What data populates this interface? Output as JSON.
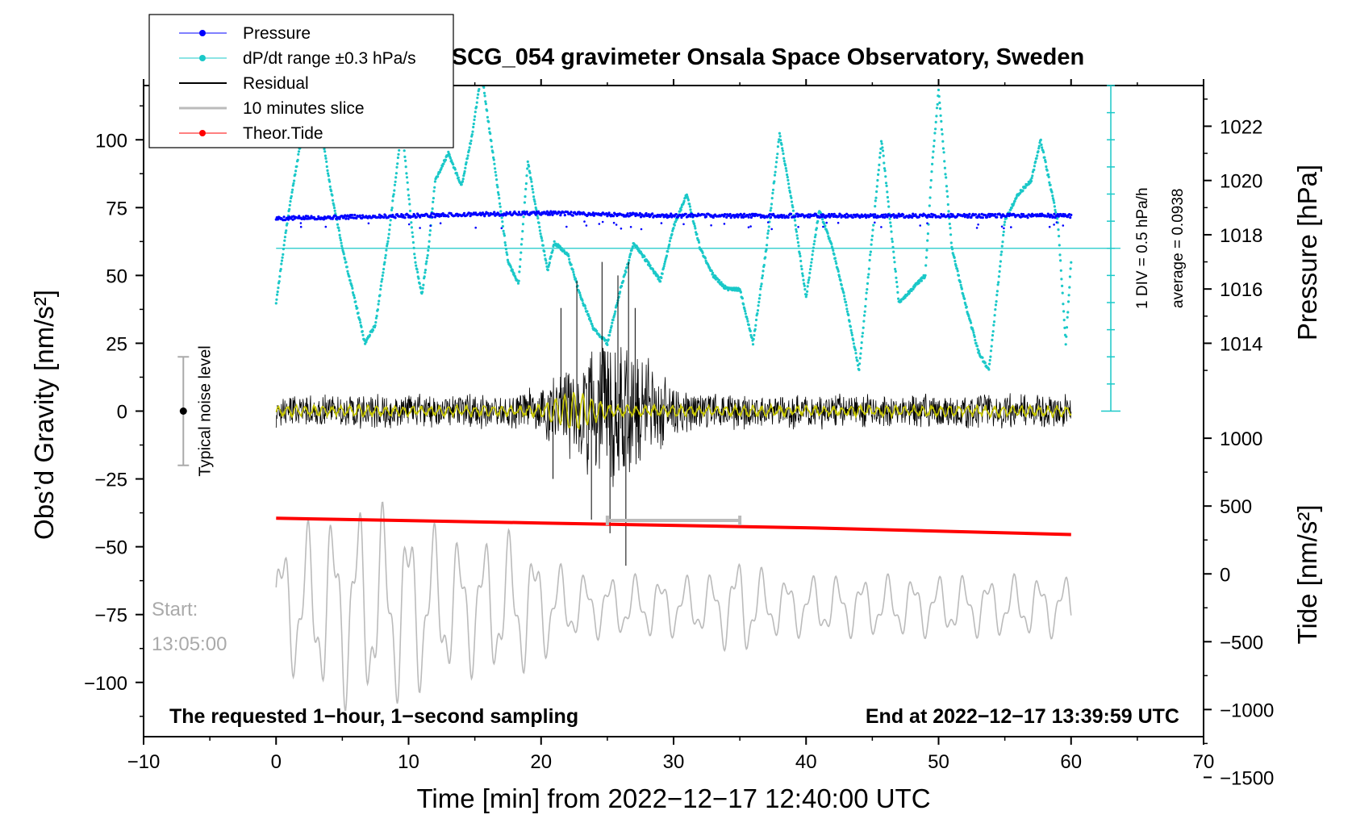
{
  "chart_data": {
    "type": "line",
    "title": "SCG_054 gravimeter Onsala Space Observatory, Sweden",
    "xlabel": "Time [min] from 2022−12−17 12:40:00 UTC",
    "ylabel_left": "Obs’d Gravity [nm/s²]",
    "ylabel_right_top": "Pressure [hPa]",
    "ylabel_right_bottom": "Tide [nm/s²]",
    "xlim": [
      -10,
      70
    ],
    "ylim_left": [
      -120,
      120
    ],
    "x_ticks": [
      -10,
      0,
      10,
      20,
      30,
      40,
      50,
      60,
      70
    ],
    "x_tick_labels": [
      "−10",
      "0",
      "10",
      "20",
      "30",
      "40",
      "50",
      "60",
      "70"
    ],
    "y_left_ticks": [
      100,
      75,
      50,
      25,
      0,
      -25,
      -50,
      -75,
      -100
    ],
    "y_left_tick_labels": [
      "100",
      "75",
      "50",
      "25",
      "0",
      "−25",
      "−50",
      "−75",
      "−100"
    ],
    "pressure_axis": {
      "ticks": [
        1022,
        1020,
        1018,
        1016,
        1014
      ],
      "tick_labels": [
        "1022",
        "1020",
        "1018",
        "1016",
        "1014"
      ],
      "gravity_equiv_at_1014": 25,
      "gravity_per_hPa": 10
    },
    "tide_axis": {
      "ticks": [
        1000,
        500,
        0,
        -500,
        -1000,
        -1500
      ],
      "tick_labels": [
        "1000",
        "500",
        "0",
        "−500",
        "−1000",
        "−1500"
      ],
      "gravity_equiv_at_0": -60,
      "gravity_per_unit": 0.05
    },
    "dpdt_scale": {
      "label1": "1 DIV = 0.5 hPa/h",
      "label2": "average = 0.0938",
      "gravity_range": [
        0,
        120
      ],
      "baseline_gravity": 60
    },
    "legend": [
      {
        "label": "Pressure",
        "color": "#0000ff",
        "marker": true
      },
      {
        "label": "dP/dt range ±0.3 hPa/s",
        "color": "#1ac8c8",
        "marker": true
      },
      {
        "label": "Residual",
        "color": "#000000",
        "marker": false
      },
      {
        "label": "10 minutes slice",
        "color": "#bbbbbb",
        "marker": false
      },
      {
        "label": "Theor.Tide",
        "color": "#ff0000",
        "marker": true
      }
    ],
    "noise_level": {
      "label": "Typical noise level",
      "x": -7,
      "center": 0,
      "range": [
        -20,
        20
      ]
    },
    "annotations": {
      "start_label": "Start:",
      "start_time": "13:05:00",
      "bottom_left": "The requested 1−hour, 1−second sampling",
      "bottom_right": "End at 2022−12−17 13:39:59 UTC"
    },
    "series": [
      {
        "name": "dP/dt range ±0.3 hPa/s",
        "color": "#1ac8c8",
        "x": [
          0,
          1,
          2,
          3,
          4,
          5,
          6,
          6.7,
          7.5,
          8.5,
          9.5,
          10.5,
          11,
          11.5,
          12,
          13,
          14,
          14.8,
          15.5,
          16.5,
          17.5,
          18.3,
          19,
          19.6,
          20.5,
          21,
          22,
          23,
          24,
          25,
          26,
          27,
          28,
          29,
          30,
          31,
          32,
          33,
          34,
          35,
          36,
          37,
          38,
          39,
          40,
          41,
          42,
          43,
          44,
          45,
          45.7,
          47,
          48,
          49,
          49.5,
          50,
          51,
          52,
          53,
          53.8,
          55,
          56,
          57,
          57.7,
          59,
          59.6,
          60
        ],
        "y": [
          40,
          75,
          103,
          118,
          85,
          60,
          40,
          25,
          32,
          65,
          105,
          55,
          43,
          60,
          85,
          95,
          83,
          102,
          125,
          90,
          55,
          47,
          92,
          75,
          52,
          62,
          58,
          42,
          30,
          25,
          45,
          62,
          55,
          48,
          68,
          80,
          60,
          50,
          45,
          45,
          25,
          60,
          102,
          75,
          42,
          74,
          60,
          40,
          15,
          65,
          100,
          40,
          45,
          50,
          90,
          118,
          60,
          40,
          22,
          15,
          70,
          80,
          85,
          100,
          70,
          25,
          55
        ]
      },
      {
        "name": "Pressure",
        "color": "#0000ff",
        "x": [
          0,
          10,
          20,
          30,
          40,
          50,
          60
        ],
        "y": [
          1018.6,
          1018.7,
          1018.8,
          1018.7,
          1018.7,
          1018.7,
          1018.7
        ]
      },
      {
        "name": "Theor.Tide",
        "color": "#ff0000",
        "x": [
          0,
          20,
          40,
          60
        ],
        "y": [
          410,
          375,
          340,
          290
        ]
      }
    ]
  }
}
